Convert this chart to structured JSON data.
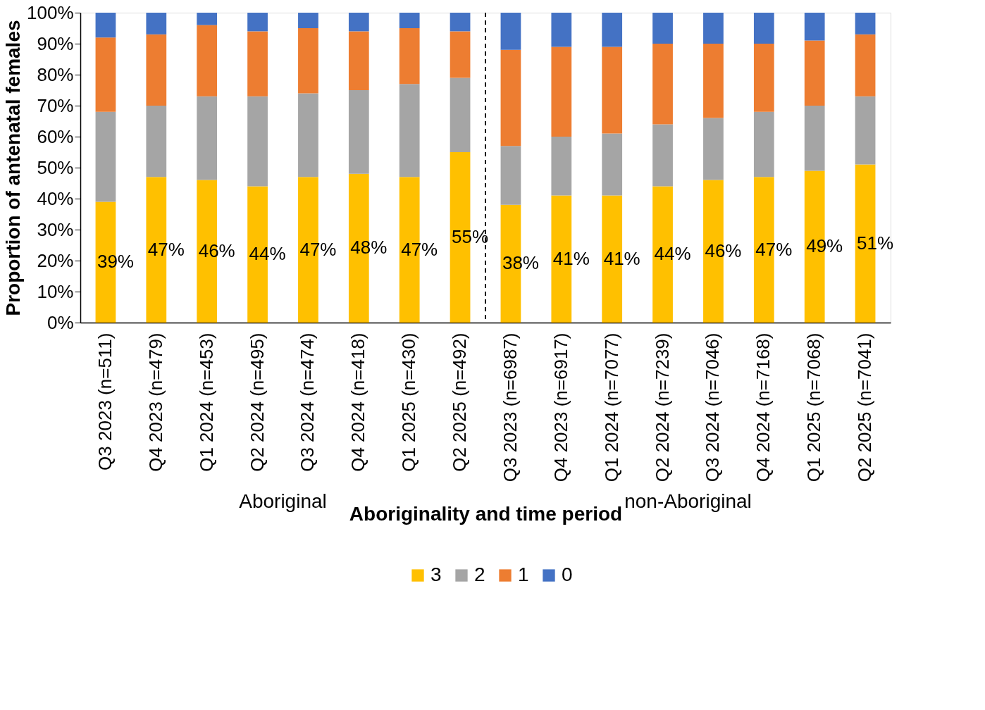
{
  "chart_data": {
    "type": "bar",
    "stacked": true,
    "ylabel": "Proportion of antenatal females",
    "xlabel": "Aboriginality and time period",
    "categories": [
      "Q3 2023 (n=511)",
      "Q4 2023 (n=479)",
      "Q1 2024 (n=453)",
      "Q2 2024 (n=495)",
      "Q3 2024 (n=474)",
      "Q4 2024 (n=418)",
      "Q1 2025 (n=430)",
      "Q2 2025 (n=492)",
      "Q3 2023 (n=6987)",
      "Q4 2023 (n=6917)",
      "Q1 2024 (n=7077)",
      "Q2 2024 (n=7239)",
      "Q3 2024 (n=7046)",
      "Q4 2024 (n=7168)",
      "Q1 2025 (n=7068)",
      "Q2 2025 (n=7041)"
    ],
    "series": [
      {
        "name": "3",
        "color": "#ffc000",
        "values": [
          39,
          47,
          46,
          44,
          47,
          48,
          47,
          55,
          38,
          41,
          41,
          44,
          46,
          47,
          49,
          51
        ],
        "value_labels": [
          "39%",
          "47%",
          "46%",
          "44%",
          "47%",
          "48%",
          "47%",
          "55%",
          "38%",
          "41%",
          "41%",
          "44%",
          "46%",
          "47%",
          "49%",
          "51%"
        ]
      },
      {
        "name": "2",
        "color": "#a5a5a5",
        "values": [
          29,
          23,
          27,
          29,
          27,
          27,
          30,
          24,
          19,
          19,
          20,
          20,
          20,
          21,
          21,
          22
        ]
      },
      {
        "name": "1",
        "color": "#ed7d31",
        "values": [
          24,
          23,
          23,
          21,
          21,
          19,
          18,
          15,
          31,
          29,
          28,
          26,
          24,
          22,
          21,
          20
        ]
      },
      {
        "name": "0",
        "color": "#4472c4",
        "values": [
          8,
          7,
          4,
          6,
          5,
          6,
          5,
          6,
          12,
          11,
          11,
          10,
          10,
          10,
          9,
          7
        ]
      }
    ],
    "ylim": [
      0,
      100
    ],
    "yticks": [
      {
        "value": 0,
        "label": "0%"
      },
      {
        "value": 10,
        "label": "10%"
      },
      {
        "value": 20,
        "label": "20%"
      },
      {
        "value": 30,
        "label": "30%"
      },
      {
        "value": 40,
        "label": "40%"
      },
      {
        "value": 50,
        "label": "50%"
      },
      {
        "value": 60,
        "label": "60%"
      },
      {
        "value": 70,
        "label": "70%"
      },
      {
        "value": 80,
        "label": "80%"
      },
      {
        "value": 90,
        "label": "90%"
      },
      {
        "value": 100,
        "label": "100%"
      }
    ],
    "annotations": [
      "Aboriginal",
      "non-Aboriginal"
    ],
    "grid": false,
    "legend": "bottom"
  }
}
